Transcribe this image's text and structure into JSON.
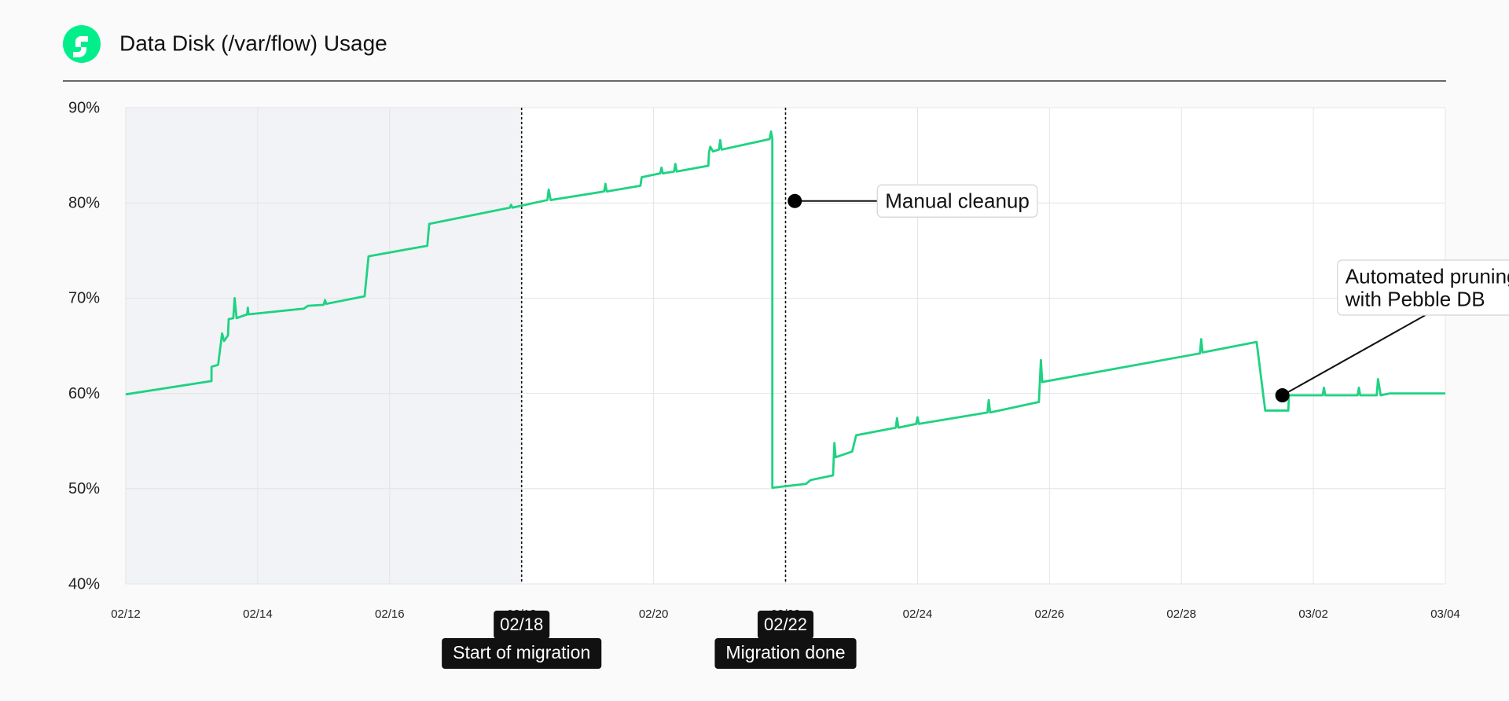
{
  "header": {
    "title": "Data Disk (/var/flow) Usage"
  },
  "chart_data": {
    "type": "line",
    "x": [
      0,
      1.3,
      1.3,
      1.4,
      1.46,
      1.49,
      1.55,
      1.56,
      1.63,
      1.65,
      1.68,
      1.84,
      1.85,
      1.86,
      2.7,
      2.76,
      3,
      3.02,
      3.04,
      3.62,
      3.68,
      4.57,
      4.6,
      5.82,
      5.84,
      5.86,
      6.39,
      6.41,
      6.44,
      7.25,
      7.27,
      7.29,
      7.8,
      7.82,
      8.1,
      8.12,
      8.14,
      8.31,
      8.33,
      8.35,
      8.83,
      8.84,
      8.86,
      8.9,
      8.99,
      9.01,
      9.03,
      9.76,
      9.78,
      9.8,
      9.8,
      10.31,
      10.38,
      10.72,
      10.74,
      10.76,
      11.01,
      11.07,
      11.67,
      11.69,
      11.71,
      11.98,
      12,
      12.02,
      13.06,
      13.08,
      13.1,
      13.84,
      13.87,
      13.89,
      16.28,
      16.3,
      16.32,
      17.14,
      17.27,
      17.62,
      17.63,
      18.14,
      18.16,
      18.18,
      18.67,
      18.69,
      18.71,
      18.96,
      18.98,
      19.02,
      19.16,
      20
    ],
    "series": [
      {
        "color": "#1fd282",
        "values": [
          59.9,
          61.3,
          62.8,
          63.0,
          66.3,
          65.5,
          66.1,
          67.8,
          67.9,
          70.0,
          67.9,
          68.3,
          69.0,
          68.3,
          68.9,
          69.2,
          69.3,
          69.8,
          69.4,
          70.2,
          74.4,
          75.5,
          77.8,
          79.5,
          79.8,
          79.5,
          80.3,
          81.4,
          80.3,
          81.2,
          82.0,
          81.2,
          81.8,
          82.7,
          83.1,
          83.7,
          83.1,
          83.3,
          84.1,
          83.3,
          83.9,
          85.3,
          85.9,
          85.4,
          85.6,
          86.6,
          85.6,
          86.7,
          87.5,
          86.7,
          50.1,
          50.5,
          50.9,
          51.4,
          54.8,
          53.3,
          53.9,
          55.6,
          56.4,
          57.4,
          56.4,
          56.8,
          57.5,
          56.8,
          58.0,
          59.3,
          58.0,
          59.1,
          63.5,
          61.2,
          64.2,
          65.7,
          64.3,
          65.4,
          58.2,
          58.2,
          59.8,
          59.8,
          60.6,
          59.8,
          59.8,
          60.6,
          59.8,
          59.8,
          61.5,
          59.8,
          60.0,
          60.0
        ]
      }
    ],
    "xlim": [
      0,
      20
    ],
    "xticks": [
      {
        "value": 0,
        "label": "02/12"
      },
      {
        "value": 2,
        "label": "02/14"
      },
      {
        "value": 4,
        "label": "02/16"
      },
      {
        "value": 6,
        "label": "02/18"
      },
      {
        "value": 8,
        "label": "02/20"
      },
      {
        "value": 10,
        "label": "02/22"
      },
      {
        "value": 12,
        "label": "02/24"
      },
      {
        "value": 14,
        "label": "02/26"
      },
      {
        "value": 16,
        "label": "02/28"
      },
      {
        "value": 18,
        "label": "03/02"
      },
      {
        "value": 20,
        "label": "03/04"
      }
    ],
    "ylim": [
      40,
      90
    ],
    "yticks": [
      {
        "value": 40,
        "label": "40%"
      },
      {
        "value": 50,
        "label": "50%"
      },
      {
        "value": 60,
        "label": "60%"
      },
      {
        "value": 70,
        "label": "70%"
      },
      {
        "value": 80,
        "label": "80%"
      },
      {
        "value": 90,
        "label": "90%"
      }
    ],
    "grid": true,
    "shaded_range": [
      0,
      6
    ],
    "markers": [
      {
        "x": 6,
        "label": "02/18",
        "text": "Start of migration"
      },
      {
        "x": 10,
        "label": "02/22",
        "text": "Migration done"
      }
    ],
    "annotations": [
      {
        "x": 10.14,
        "y": 80.2,
        "lines": [
          "Manual cleanup"
        ]
      },
      {
        "x": 17.53,
        "y": 59.8,
        "lines": [
          "Automated pruning",
          "with Pebble DB"
        ]
      }
    ]
  }
}
